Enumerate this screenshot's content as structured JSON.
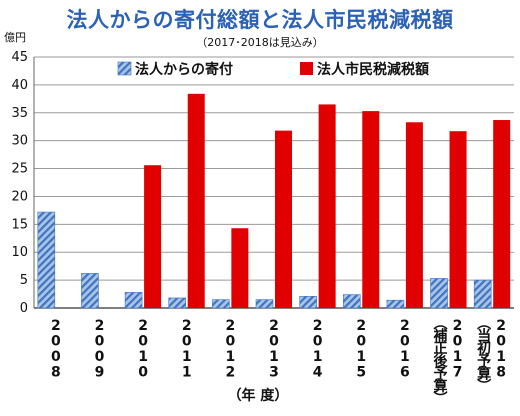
{
  "chart_data": {
    "type": "bar",
    "title": "法人からの寄付総額と法人市民税減税額",
    "subtitle": "（2017･2018は見込み）",
    "unit_label": "億円",
    "xlabel": "（年 度）",
    "ylim": [
      0,
      45
    ],
    "yticks": [
      0,
      5,
      10,
      15,
      20,
      25,
      30,
      35,
      40,
      45
    ],
    "legend_position": "top",
    "grid": true,
    "categories": [
      {
        "year": "2008",
        "note": ""
      },
      {
        "year": "2009",
        "note": ""
      },
      {
        "year": "2010",
        "note": ""
      },
      {
        "year": "2011",
        "note": ""
      },
      {
        "year": "2012",
        "note": ""
      },
      {
        "year": "2013",
        "note": ""
      },
      {
        "year": "2014",
        "note": ""
      },
      {
        "year": "2015",
        "note": ""
      },
      {
        "year": "2016",
        "note": ""
      },
      {
        "year": "2017",
        "note": "（補正後予算）"
      },
      {
        "year": "2018",
        "note": "（当初予算）"
      }
    ],
    "series": [
      {
        "name": "法人からの寄付",
        "color": "#4f7fbf",
        "pattern": "hatched",
        "values": [
          17.2,
          6.2,
          2.8,
          1.8,
          1.5,
          1.5,
          2.1,
          2.4,
          1.4,
          5.3,
          5.0
        ]
      },
      {
        "name": "法人市民税減税額",
        "color": "#e00000",
        "pattern": "solid",
        "values": [
          null,
          null,
          25.6,
          38.4,
          14.3,
          31.8,
          36.5,
          35.3,
          33.3,
          31.7,
          33.7
        ]
      }
    ]
  }
}
